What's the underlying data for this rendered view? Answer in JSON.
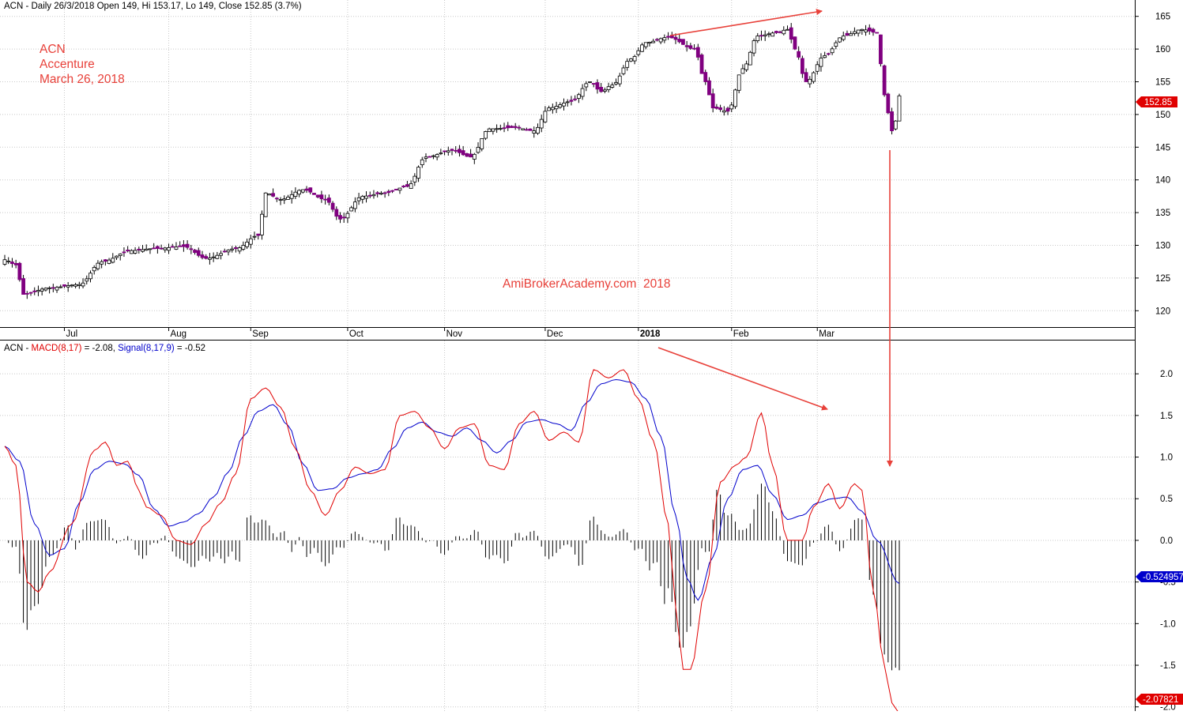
{
  "price_panel": {
    "header": "ACN - Daily 26/3/2018 Open 149, Hi 153.17, Lo 149, Close 152.85 (3.7%)",
    "annotation_lines": [
      "ACN",
      "Accenture",
      "March 26, 2018"
    ],
    "watermark": "AmiBrokerAcademy.com  2018",
    "last_price_label": "152.85",
    "month_labels": [
      "Jul",
      "Aug",
      "Sep",
      "Oct",
      "Nov",
      "Dec",
      "2018",
      "Feb",
      "Mar"
    ]
  },
  "macd_panel": {
    "header_prefix": "ACN - ",
    "macd_label": "MACD(8,17)",
    "macd_value_text": " = -2.08, ",
    "signal_label": "Signal(8,17,9)",
    "signal_value_text": " = -0.52",
    "signal_readout": "-0.524957",
    "macd_readout": "-2.07821"
  },
  "colors": {
    "up_candle": "#ffffff",
    "down_candle": "#800080",
    "macd_line": "#e00000",
    "signal_line": "#0000cc",
    "histogram": "#000000",
    "annotation": "#e8413a",
    "grid": "#c8c8c8",
    "price_badge": "#e00000",
    "signal_badge": "#0000cc"
  },
  "chart_data": [
    {
      "type": "candlestick",
      "title": "ACN - Daily 26/3/2018 Open 149, Hi 153.17, Lo 149, Close 152.85 (3.7%)",
      "ylim": [
        117.5,
        167.5
      ],
      "yticks": [
        120,
        125,
        130,
        135,
        140,
        145,
        150,
        155,
        160,
        165
      ],
      "x_tick_labels": [
        "Jul",
        "Aug",
        "Sep",
        "Oct",
        "Nov",
        "Dec",
        "2018",
        "Feb",
        "Mar"
      ],
      "anchors_session_close": [
        [
          0,
          127.8
        ],
        [
          3,
          127.0
        ],
        [
          5,
          122.5
        ],
        [
          12,
          123.5
        ],
        [
          20,
          124.0
        ],
        [
          26,
          127.5
        ],
        [
          34,
          129.2
        ],
        [
          40,
          129.5
        ],
        [
          48,
          129.8
        ],
        [
          54,
          128.0
        ],
        [
          62,
          129.5
        ],
        [
          68,
          131.5
        ],
        [
          70,
          138.0
        ],
        [
          74,
          137.0
        ],
        [
          80,
          138.5
        ],
        [
          86,
          137.0
        ],
        [
          90,
          134.0
        ],
        [
          96,
          137.5
        ],
        [
          102,
          138.0
        ],
        [
          108,
          139.0
        ],
        [
          113,
          143.5
        ],
        [
          120,
          144.5
        ],
        [
          125,
          143.5
        ],
        [
          130,
          147.8
        ],
        [
          137,
          148.0
        ],
        [
          142,
          147.5
        ],
        [
          146,
          151.0
        ],
        [
          152,
          152.0
        ],
        [
          157,
          155.0
        ],
        [
          160,
          153.5
        ],
        [
          163,
          154.5
        ],
        [
          168,
          158.5
        ],
        [
          172,
          161.0
        ],
        [
          178,
          161.8
        ],
        [
          185,
          160.0
        ],
        [
          188,
          155.0
        ],
        [
          190,
          151.0
        ],
        [
          194,
          150.5
        ],
        [
          198,
          157.0
        ],
        [
          202,
          162.0
        ],
        [
          207,
          162.5
        ],
        [
          210,
          163.0
        ],
        [
          212,
          160.0
        ],
        [
          215,
          155.0
        ],
        [
          220,
          159.0
        ],
        [
          225,
          162.0
        ],
        [
          230,
          163.0
        ],
        [
          234,
          162.5
        ],
        [
          236,
          153.0
        ],
        [
          238,
          147.5
        ],
        [
          239,
          149.0
        ],
        [
          240,
          152.85
        ]
      ],
      "last_bar": {
        "open": 149,
        "high": 153.17,
        "low": 149,
        "close": 152.85
      }
    },
    {
      "type": "line",
      "title": "ACN - MACD(8,17) = -2.08, Signal(8,17,9) = -0.52",
      "ylim": [
        -2.05,
        2.4
      ],
      "yticks": [
        -2.0,
        -1.5,
        -1.0,
        -0.5,
        0.0,
        0.5,
        1.0,
        1.5,
        2.0
      ],
      "series": [
        {
          "name": "MACD(8,17)",
          "anchors_session_value": [
            [
              0,
              1.13
            ],
            [
              3,
              0.9
            ],
            [
              6,
              -0.5
            ],
            [
              9,
              -0.62
            ],
            [
              12,
              -0.38
            ],
            [
              18,
              0.2
            ],
            [
              24,
              1.08
            ],
            [
              27,
              1.18
            ],
            [
              30,
              0.9
            ],
            [
              33,
              0.95
            ],
            [
              36,
              0.6
            ],
            [
              38,
              0.4
            ],
            [
              42,
              0.3
            ],
            [
              46,
              0.0
            ],
            [
              50,
              -0.05
            ],
            [
              54,
              0.2
            ],
            [
              58,
              0.45
            ],
            [
              62,
              0.8
            ],
            [
              66,
              1.7
            ],
            [
              70,
              1.83
            ],
            [
              74,
              1.6
            ],
            [
              78,
              1.1
            ],
            [
              82,
              0.6
            ],
            [
              86,
              0.3
            ],
            [
              90,
              0.6
            ],
            [
              94,
              0.88
            ],
            [
              98,
              0.8
            ],
            [
              102,
              0.85
            ],
            [
              106,
              1.5
            ],
            [
              110,
              1.55
            ],
            [
              114,
              1.35
            ],
            [
              118,
              1.1
            ],
            [
              122,
              1.35
            ],
            [
              126,
              1.4
            ],
            [
              130,
              0.9
            ],
            [
              134,
              0.85
            ],
            [
              138,
              1.4
            ],
            [
              142,
              1.55
            ],
            [
              146,
              1.2
            ],
            [
              150,
              1.3
            ],
            [
              154,
              1.18
            ],
            [
              158,
              2.05
            ],
            [
              162,
              1.95
            ],
            [
              166,
              2.05
            ],
            [
              170,
              1.7
            ],
            [
              174,
              1.2
            ],
            [
              178,
              0.2
            ],
            [
              180,
              -0.8
            ],
            [
              182,
              -1.55
            ],
            [
              184,
              -1.55
            ],
            [
              188,
              -0.6
            ],
            [
              192,
              0.7
            ],
            [
              196,
              0.9
            ],
            [
              199,
              1.0
            ],
            [
              203,
              1.53
            ],
            [
              206,
              0.9
            ],
            [
              210,
              0.0
            ],
            [
              214,
              0.0
            ],
            [
              217,
              0.4
            ],
            [
              221,
              0.68
            ],
            [
              224,
              0.38
            ],
            [
              228,
              0.68
            ],
            [
              230,
              0.6
            ],
            [
              233,
              -0.6
            ],
            [
              236,
              -1.5
            ],
            [
              238,
              -1.95
            ],
            [
              240,
              -2.08
            ]
          ]
        },
        {
          "name": "Signal(8,17,9)",
          "anchors_session_value": [
            [
              0,
              1.13
            ],
            [
              4,
              0.95
            ],
            [
              8,
              0.2
            ],
            [
              12,
              -0.18
            ],
            [
              16,
              -0.1
            ],
            [
              20,
              0.45
            ],
            [
              24,
              0.85
            ],
            [
              28,
              0.95
            ],
            [
              32,
              0.92
            ],
            [
              36,
              0.78
            ],
            [
              40,
              0.38
            ],
            [
              44,
              0.17
            ],
            [
              48,
              0.22
            ],
            [
              52,
              0.32
            ],
            [
              56,
              0.52
            ],
            [
              60,
              0.82
            ],
            [
              64,
              1.25
            ],
            [
              68,
              1.55
            ],
            [
              72,
              1.63
            ],
            [
              76,
              1.38
            ],
            [
              80,
              0.92
            ],
            [
              84,
              0.6
            ],
            [
              88,
              0.62
            ],
            [
              92,
              0.75
            ],
            [
              96,
              0.8
            ],
            [
              100,
              0.85
            ],
            [
              104,
              1.1
            ],
            [
              108,
              1.35
            ],
            [
              112,
              1.42
            ],
            [
              116,
              1.3
            ],
            [
              120,
              1.25
            ],
            [
              124,
              1.35
            ],
            [
              128,
              1.2
            ],
            [
              132,
              1.05
            ],
            [
              136,
              1.2
            ],
            [
              140,
              1.42
            ],
            [
              144,
              1.45
            ],
            [
              148,
              1.4
            ],
            [
              152,
              1.32
            ],
            [
              156,
              1.65
            ],
            [
              160,
              1.88
            ],
            [
              164,
              1.93
            ],
            [
              168,
              1.9
            ],
            [
              172,
              1.7
            ],
            [
              176,
              1.25
            ],
            [
              180,
              0.3
            ],
            [
              183,
              -0.45
            ],
            [
              186,
              -0.72
            ],
            [
              190,
              -0.2
            ],
            [
              194,
              0.5
            ],
            [
              198,
              0.85
            ],
            [
              202,
              0.9
            ],
            [
              206,
              0.55
            ],
            [
              210,
              0.25
            ],
            [
              214,
              0.3
            ],
            [
              218,
              0.45
            ],
            [
              222,
              0.5
            ],
            [
              226,
              0.52
            ],
            [
              230,
              0.35
            ],
            [
              234,
              0.0
            ],
            [
              240,
              -0.52
            ]
          ]
        }
      ],
      "histogram": "MACD(8,17) minus Signal(8,17,9), drawn as vertical bars from 0.0"
    }
  ]
}
